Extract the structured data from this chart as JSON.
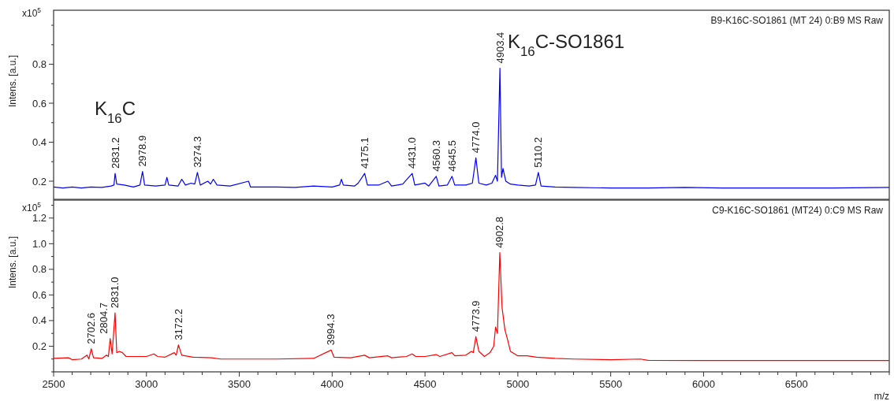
{
  "chart_data": [
    {
      "type": "line",
      "title": "B9-K16C-SO1861 (MT 24) 0:B9 MS Raw",
      "ylabel": "Intens. [a.u.]",
      "tick_labels": "y",
      "grid": false,
      "xlim": [
        2500,
        7000
      ],
      "ylim": [
        0.107,
        1.077
      ],
      "yticks": [
        0.2,
        {
          "value": 0.3,
          "label": null
        },
        0.4,
        {
          "value": 0.5,
          "label": null
        },
        0.6,
        {
          "value": 0.7,
          "label": null
        },
        0.8,
        {
          "value": 0.9,
          "label": null
        },
        {
          "value": 1.0,
          "label": null
        }
      ],
      "series": [
        {
          "color": "#0000ff",
          "x": [
            2500,
            2550,
            2600,
            2650,
            2700,
            2760,
            2810,
            2825,
            2831.2,
            2840,
            2880,
            2930,
            2965,
            2978.9,
            2990,
            3050,
            3100,
            3110,
            3120,
            3170,
            3190,
            3210,
            3240,
            3260,
            3274.3,
            3290,
            3330,
            3345,
            3360,
            3380,
            3450,
            3550,
            3560,
            3700,
            3800,
            3900,
            4000,
            4040,
            4050,
            4060,
            4120,
            4140,
            4175.1,
            4190,
            4250,
            4300,
            4320,
            4380,
            4431.0,
            4445,
            4500,
            4520,
            4560.3,
            4575,
            4620,
            4645.5,
            4660,
            4720,
            4755,
            4774.0,
            4790,
            4830,
            4860,
            4880,
            4890,
            4903.4,
            4912,
            4920,
            4935,
            4960,
            5000,
            5060,
            5095,
            5110.2,
            5125,
            5200,
            5300,
            5500,
            5700,
            5900,
            6100,
            6300,
            6500,
            6700,
            7000
          ],
          "values": [
            0.17,
            0.165,
            0.17,
            0.165,
            0.17,
            0.168,
            0.175,
            0.18,
            0.24,
            0.185,
            0.18,
            0.17,
            0.18,
            0.25,
            0.18,
            0.175,
            0.18,
            0.22,
            0.18,
            0.175,
            0.21,
            0.18,
            0.19,
            0.185,
            0.245,
            0.18,
            0.2,
            0.185,
            0.21,
            0.18,
            0.175,
            0.2,
            0.17,
            0.17,
            0.168,
            0.175,
            0.17,
            0.18,
            0.21,
            0.18,
            0.175,
            0.19,
            0.24,
            0.18,
            0.18,
            0.2,
            0.175,
            0.185,
            0.24,
            0.18,
            0.19,
            0.175,
            0.225,
            0.175,
            0.18,
            0.225,
            0.18,
            0.18,
            0.19,
            0.32,
            0.19,
            0.18,
            0.19,
            0.23,
            0.2,
            0.78,
            0.22,
            0.265,
            0.2,
            0.185,
            0.18,
            0.175,
            0.18,
            0.245,
            0.175,
            0.17,
            0.168,
            0.165,
            0.165,
            0.168,
            0.165,
            0.165,
            0.165,
            0.165,
            0.168
          ]
        }
      ],
      "annotations": [
        {
          "text": "2831.2",
          "x": 2831.2,
          "y": 0.24
        },
        {
          "text": "2978.9",
          "x": 2978.9,
          "y": 0.25
        },
        {
          "text": "3274.3",
          "x": 3274.3,
          "y": 0.245
        },
        {
          "text": "4175.1",
          "x": 4175.1,
          "y": 0.24
        },
        {
          "text": "4431.0",
          "x": 4431.0,
          "y": 0.24
        },
        {
          "text": "4560.3",
          "x": 4560.3,
          "y": 0.225
        },
        {
          "text": "4645.5",
          "x": 4645.5,
          "y": 0.225
        },
        {
          "text": "4774.0",
          "x": 4774.0,
          "y": 0.32
        },
        {
          "text": "4903.4",
          "x": 4903.4,
          "y": 0.78
        },
        {
          "text": "5110.2",
          "x": 5110.2,
          "y": 0.245
        },
        "x10$^{5}$",
        "K$_{16}$C",
        "K$_{16}$C-SO1861"
      ]
    },
    {
      "type": "line",
      "title": "C9-K16C-SO1861 (MT24) 0:C9 MS Raw",
      "ylabel": "Intens. [a.u.]",
      "xlabel": "m/z",
      "grid": false,
      "xlim": [
        2500,
        7000
      ],
      "ylim": [
        0,
        1.34
      ],
      "xticks": [
        2500,
        {
          "value": 2600,
          "label": null
        },
        {
          "value": 2700,
          "label": null
        },
        {
          "value": 2800,
          "label": null
        },
        {
          "value": 2900,
          "label": null
        },
        3000,
        {
          "value": 3100,
          "label": null
        },
        {
          "value": 3200,
          "label": null
        },
        {
          "value": 3300,
          "label": null
        },
        {
          "value": 3400,
          "label": null
        },
        3500,
        {
          "value": 3600,
          "label": null
        },
        {
          "value": 3700,
          "label": null
        },
        {
          "value": 3800,
          "label": null
        },
        {
          "value": 3900,
          "label": null
        },
        4000,
        {
          "value": 4100,
          "label": null
        },
        {
          "value": 4200,
          "label": null
        },
        {
          "value": 4300,
          "label": null
        },
        {
          "value": 4400,
          "label": null
        },
        4500,
        {
          "value": 4600,
          "label": null
        },
        {
          "value": 4700,
          "label": null
        },
        {
          "value": 4800,
          "label": null
        },
        {
          "value": 4900,
          "label": null
        },
        5000,
        {
          "value": 5100,
          "label": null
        },
        {
          "value": 5200,
          "label": null
        },
        {
          "value": 5300,
          "label": null
        },
        {
          "value": 5400,
          "label": null
        },
        5500,
        {
          "value": 5600,
          "label": null
        },
        {
          "value": 5700,
          "label": null
        },
        {
          "value": 5800,
          "label": null
        },
        {
          "value": 5900,
          "label": null
        },
        6000,
        {
          "value": 6100,
          "label": null
        },
        {
          "value": 6200,
          "label": null
        },
        {
          "value": 6300,
          "label": null
        },
        {
          "value": 6400,
          "label": null
        },
        6500,
        {
          "value": 6600,
          "label": null
        },
        {
          "value": 6700,
          "label": null
        },
        {
          "value": 6800,
          "label": null
        },
        {
          "value": 6900,
          "label": null
        },
        {
          "value": 7000,
          "label": null
        }
      ],
      "yticks": [
        {
          "value": 0,
          "label": null
        },
        {
          "value": 0.1,
          "label": null
        },
        0.2,
        {
          "value": 0.3,
          "label": null
        },
        0.4,
        {
          "value": 0.5,
          "label": null
        },
        0.6,
        {
          "value": 0.7,
          "label": null
        },
        0.8,
        {
          "value": 0.9,
          "label": null
        },
        {
          "value": 1.0,
          "label": "1.0"
        },
        {
          "value": 1.1,
          "label": null
        },
        1.2,
        {
          "value": 1.3,
          "label": null
        }
      ],
      "series": [
        {
          "color": "#ff0000",
          "x": [
            2500,
            2580,
            2600,
            2650,
            2680,
            2690,
            2702.6,
            2715,
            2760,
            2785,
            2795,
            2804.7,
            2815,
            2831.0,
            2840,
            2855,
            2870,
            2890,
            2950,
            3000,
            3040,
            3060,
            3100,
            3150,
            3160,
            3172.2,
            3190,
            3250,
            3350,
            3400,
            3500,
            3700,
            3900,
            3994.3,
            4010,
            4100,
            4175,
            4200,
            4300,
            4320,
            4400,
            4431,
            4450,
            4500,
            4560,
            4580,
            4645,
            4660,
            4720,
            4750,
            4760,
            4773.9,
            4790,
            4820,
            4850,
            4870,
            4880,
            4890,
            4902.8,
            4915,
            4930,
            4945,
            4960,
            5000,
            5050,
            5100,
            5200,
            5300,
            5500,
            5660,
            5700,
            6000,
            6500,
            7000
          ],
          "values": [
            0.105,
            0.11,
            0.095,
            0.1,
            0.13,
            0.1,
            0.18,
            0.11,
            0.105,
            0.13,
            0.12,
            0.26,
            0.14,
            0.46,
            0.15,
            0.16,
            0.15,
            0.12,
            0.12,
            0.12,
            0.14,
            0.12,
            0.115,
            0.15,
            0.13,
            0.21,
            0.13,
            0.115,
            0.11,
            0.1,
            0.1,
            0.1,
            0.105,
            0.17,
            0.115,
            0.11,
            0.13,
            0.11,
            0.125,
            0.11,
            0.12,
            0.14,
            0.12,
            0.12,
            0.135,
            0.12,
            0.15,
            0.125,
            0.13,
            0.16,
            0.15,
            0.275,
            0.16,
            0.12,
            0.15,
            0.2,
            0.35,
            0.3,
            0.93,
            0.5,
            0.33,
            0.25,
            0.16,
            0.125,
            0.125,
            0.115,
            0.105,
            0.1,
            0.095,
            0.1,
            0.09,
            0.088,
            0.088,
            0.088
          ]
        }
      ],
      "annotations": [
        {
          "text": "2702.6",
          "x": 2702.6,
          "y": 0.18
        },
        {
          "text": "2804.7",
          "x": 2804.7,
          "y": 0.26
        },
        {
          "text": "2831.0",
          "x": 2831.0,
          "y": 0.46
        },
        {
          "text": "3172.2",
          "x": 3172.2,
          "y": 0.21
        },
        {
          "text": "3994.3",
          "x": 3994.3,
          "y": 0.17
        },
        {
          "text": "4773.9",
          "x": 4773.9,
          "y": 0.275
        },
        {
          "text": "4902.8",
          "x": 4902.8,
          "y": 0.93
        },
        "x10$^{5}$"
      ]
    }
  ]
}
